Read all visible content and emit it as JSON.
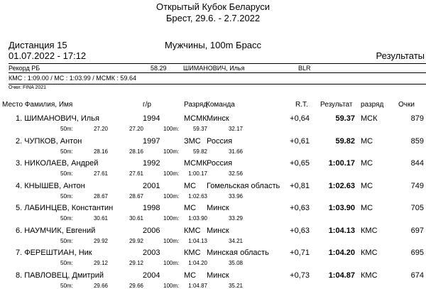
{
  "header": {
    "title": "Открытый Кубок Беларуси",
    "subtitle": "Брест, 29.6. - 2.7.2022"
  },
  "event": {
    "distance": "Дистанция 15",
    "datetime": "01.07.2022 - 17:12",
    "name": "Мужчины, 100m Брасс",
    "results_label": "Результаты"
  },
  "record": {
    "label": "Рекорд РБ",
    "time": "58.29",
    "holder": "ШИМАНОВИЧ, Илья",
    "nation": "BLR",
    "standards": "КМС : 1:09.00  /  МС : 1:03.99  /  МСМК : 59.64",
    "points_note": "Очки: FINA 2021"
  },
  "columns": {
    "place_name": "Место Фамилия, Имя",
    "year": "г/р",
    "rank": "Разряд",
    "team": "Команда",
    "rt": "R.T.",
    "result": "Результат",
    "grade": "разряд",
    "points": "Очки"
  },
  "results": [
    {
      "place_name": "1. ШИМАНОВИЧ, Илья",
      "year": "1994",
      "rank": "МСМК",
      "team": "Минск",
      "rt": "+0,64",
      "result": "59.37",
      "grade": "МСК",
      "points": "879",
      "s50": "27.20",
      "s50b": "27.20",
      "s100": "59.37",
      "s100b": "32.17"
    },
    {
      "place_name": "2. ЧУПКОВ, Антон",
      "year": "1997",
      "rank": "ЗМС",
      "team": "Россия",
      "rt": "+0,61",
      "result": "59.82",
      "grade": "МС",
      "points": "859",
      "s50": "28.16",
      "s50b": "28.16",
      "s100": "59.82",
      "s100b": "31.66"
    },
    {
      "place_name": "3. НИКОЛАЕВ, Андрей",
      "year": "1992",
      "rank": "МСМК",
      "team": "Россия",
      "rt": "+0,65",
      "result": "1:00.17",
      "grade": "МС",
      "points": "844",
      "s50": "27.61",
      "s50b": "27.61",
      "s100": "1:00.17",
      "s100b": "32.56"
    },
    {
      "place_name": "4. КНЫШЕВ, Антон",
      "year": "2001",
      "rank": "МС",
      "team": "Гомельская область",
      "rt": "+0,81",
      "result": "1:02.63",
      "grade": "МС",
      "points": "749",
      "s50": "28.67",
      "s50b": "28.67",
      "s100": "1:02.63",
      "s100b": "33.96"
    },
    {
      "place_name": "5. ЛАБИНЦЕВ, Константин",
      "year": "1998",
      "rank": "МС",
      "team": "Минск",
      "rt": "+0,63",
      "result": "1:03.90",
      "grade": "МС",
      "points": "705",
      "s50": "30.61",
      "s50b": "30.61",
      "s100": "1:03.90",
      "s100b": "33.29"
    },
    {
      "place_name": "6. НАУМЧИК, Евгений",
      "year": "2006",
      "rank": "КМС",
      "team": "Минск",
      "rt": "+0,63",
      "result": "1:04.13",
      "grade": "КМС",
      "points": "697",
      "s50": "29.92",
      "s50b": "29.92",
      "s100": "1:04.13",
      "s100b": "34.21"
    },
    {
      "place_name": "7. ФЕРЕШТИАН, Ник",
      "year": "2003",
      "rank": "КМС",
      "team": "Минская область",
      "rt": "+0,71",
      "result": "1:04.20",
      "grade": "КМС",
      "points": "695",
      "s50": "29.12",
      "s50b": "29.12",
      "s100": "1:04.20",
      "s100b": "35.08"
    },
    {
      "place_name": "8. ПАВЛОВЕЦ, Дмитрий",
      "year": "2004",
      "rank": "МС",
      "team": "Минск",
      "rt": "+0,73",
      "result": "1:04.87",
      "grade": "КМС",
      "points": "674",
      "s50": "29.66",
      "s50b": "29.66",
      "s100": "1:04.87",
      "s100b": "35.21"
    }
  ],
  "split_labels": {
    "m50": "50m:",
    "m100": "100m:"
  }
}
